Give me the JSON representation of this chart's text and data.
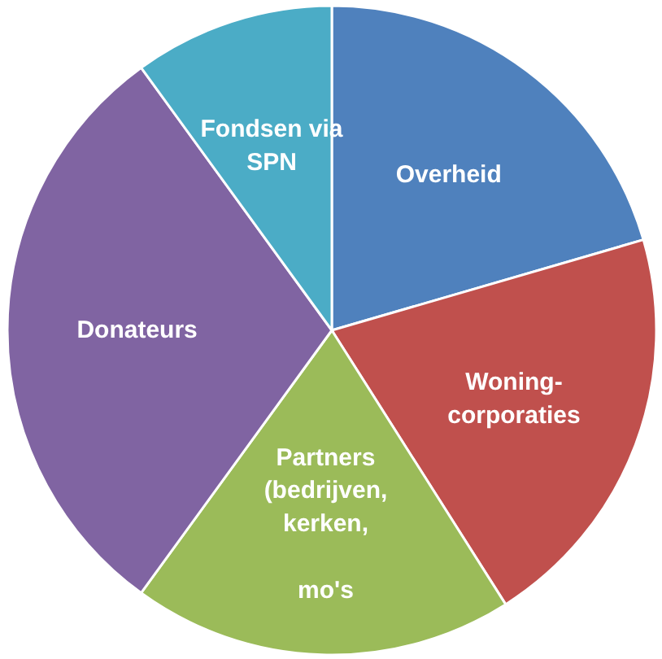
{
  "chart_data": {
    "type": "pie",
    "categories": [
      "Overheid",
      "Woning-\ncorporaties",
      "Partners\n(bedrijven,\nkerken,\n\nmo's",
      "Donateurs",
      "Fondsen via\nSPN"
    ],
    "values": [
      20.5,
      20.5,
      19,
      30,
      10
    ],
    "colors": [
      "#4f81bd",
      "#c0504d",
      "#9bbb59",
      "#8064a2",
      "#4bacc6"
    ]
  }
}
